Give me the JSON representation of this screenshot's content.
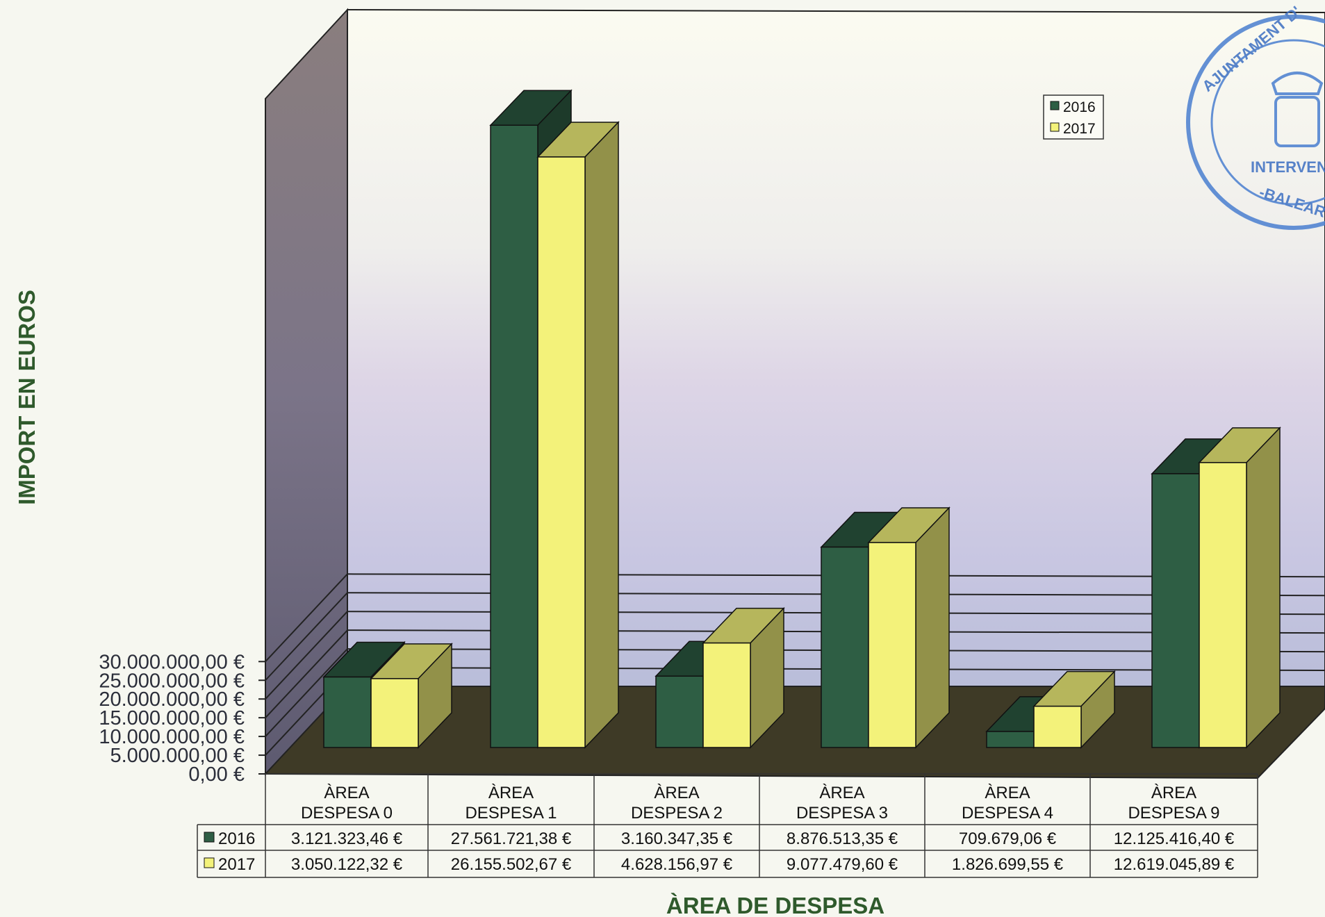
{
  "chart_data": {
    "type": "bar",
    "subtype": "3d-clustered-column",
    "ylabel": "IMPORT EN EUROS",
    "xlabel": "ÀREA DE DESPESA",
    "ylim": [
      0,
      30000000
    ],
    "y_ticks": [
      0,
      5000000,
      10000000,
      15000000,
      20000000,
      25000000,
      30000000
    ],
    "y_tick_labels": [
      "0,00 €",
      "5.000.000,00 €",
      "10.000.000,00 €",
      "15.000.000,00 €",
      "20.000.000,00 €",
      "25.000.000,00 €",
      "30.000.000,00 €"
    ],
    "categories": [
      [
        "ÀREA",
        "DESPESA 0"
      ],
      [
        "ÀREA",
        "DESPESA 1"
      ],
      [
        "ÀREA",
        "DESPESA 2"
      ],
      [
        "ÀREA",
        "DESPESA 3"
      ],
      [
        "ÀREA",
        "DESPESA 4"
      ],
      [
        "ÀREA",
        "DESPESA 9"
      ]
    ],
    "series": [
      {
        "name": "2016",
        "color": "#2e5e44",
        "values": [
          3121323.46,
          27561721.38,
          3160347.35,
          8876513.35,
          709679.06,
          12125416.4
        ],
        "value_labels": [
          "3.121.323,46 €",
          "27.561.721,38 €",
          "3.160.347,35 €",
          "8.876.513,35 €",
          "709.679,06 €",
          "12.125.416,40 €"
        ]
      },
      {
        "name": "2017",
        "color": "#f3f27a",
        "values": [
          3050122.32,
          26155502.67,
          4628156.97,
          9077479.6,
          1826699.55,
          12619045.89
        ],
        "value_labels": [
          "3.050.122,32 €",
          "26.155.502,67 €",
          "4.628.156,97 €",
          "9.077.479,60 €",
          "1.826.699,55 €",
          "12.619.045,89 €"
        ]
      }
    ],
    "legend": {
      "position": "top-right",
      "entries": [
        "2016",
        "2017"
      ]
    },
    "grid": true,
    "data_table": true
  },
  "stamp": {
    "lines": [
      "AJUNTAMENT D'",
      "INTERVEN",
      "-BALEAR"
    ]
  }
}
